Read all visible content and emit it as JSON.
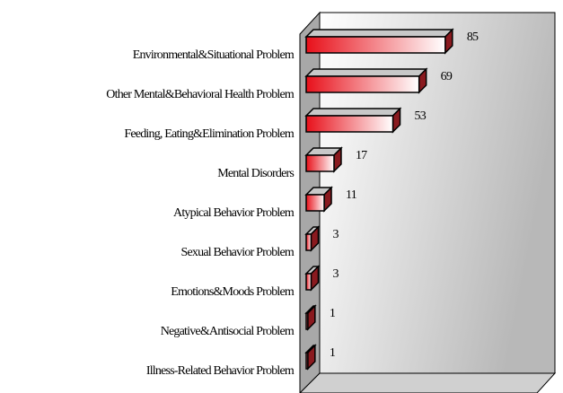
{
  "chart_data": {
    "type": "bar",
    "orientation": "horizontal",
    "categories": [
      "Environmental&Situational Problem",
      "Other Mental&Behavioral Health Problem",
      "Feeding, Eating&Elimination Problem",
      "Mental Disorders",
      "Atypical Behavior Problem",
      "Sexual Behavior Problem",
      "Emotions&Moods Problem",
      "Negative&Antisocial Problem",
      "Illness-Related Behavior Problem"
    ],
    "values": [
      85,
      69,
      53,
      17,
      11,
      3,
      3,
      1,
      1
    ],
    "color": "#e8101a",
    "xlim": [
      0,
      140
    ]
  }
}
